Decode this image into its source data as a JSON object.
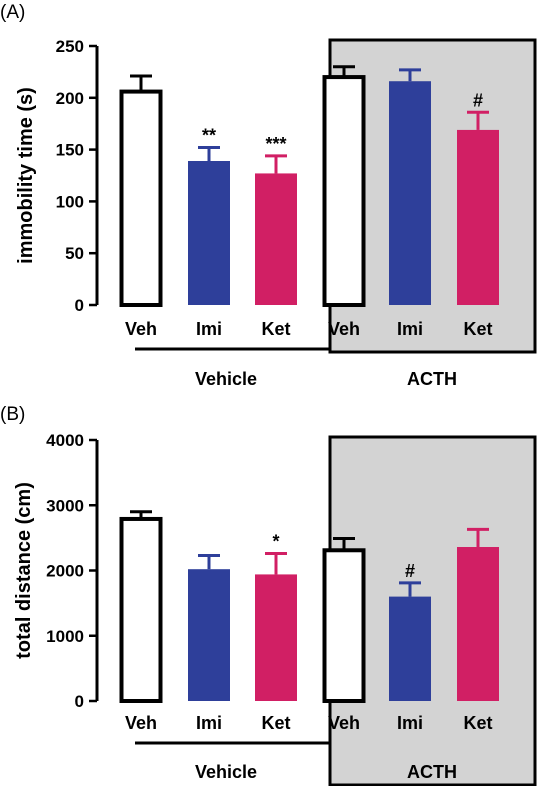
{
  "colors": {
    "vehicle_bar_fill": "#ffffff",
    "imi_bar": "#2e3f9a",
    "ket_bar": "#d11f64",
    "acth_box_fill": "#d3d3d3",
    "outline": "#000000"
  },
  "chart_data": [
    {
      "panel_label": "(A)",
      "type": "bar",
      "ylabel": "immobility time (s)",
      "ylim": [
        0,
        250
      ],
      "yticks": [
        "0",
        "50",
        "100",
        "150",
        "200",
        "250"
      ],
      "categories": [
        "Veh",
        "Imi",
        "Ket",
        "Veh",
        "Imi",
        "Ket"
      ],
      "groups": [
        "Vehicle",
        "ACTH"
      ],
      "values": [
        206,
        139,
        127,
        220,
        216,
        169
      ],
      "errors": [
        15,
        13,
        17,
        10,
        11,
        17
      ],
      "significance": [
        "",
        "**",
        "***",
        "",
        "",
        "#"
      ],
      "grid": false
    },
    {
      "panel_label": "(B)",
      "type": "bar",
      "ylabel": "total distance (cm)",
      "ylim": [
        0,
        4000
      ],
      "yticks": [
        "0",
        "1000",
        "2000",
        "3000",
        "4000"
      ],
      "categories": [
        "Veh",
        "Imi",
        "Ket",
        "Veh",
        "Imi",
        "Ket"
      ],
      "groups": [
        "Vehicle",
        "ACTH"
      ],
      "values": [
        2790,
        2020,
        1940,
        2310,
        1600,
        2360
      ],
      "errors": [
        110,
        210,
        320,
        180,
        210,
        270
      ],
      "significance": [
        "",
        "",
        "*",
        "",
        "#",
        ""
      ],
      "grid": false
    }
  ]
}
